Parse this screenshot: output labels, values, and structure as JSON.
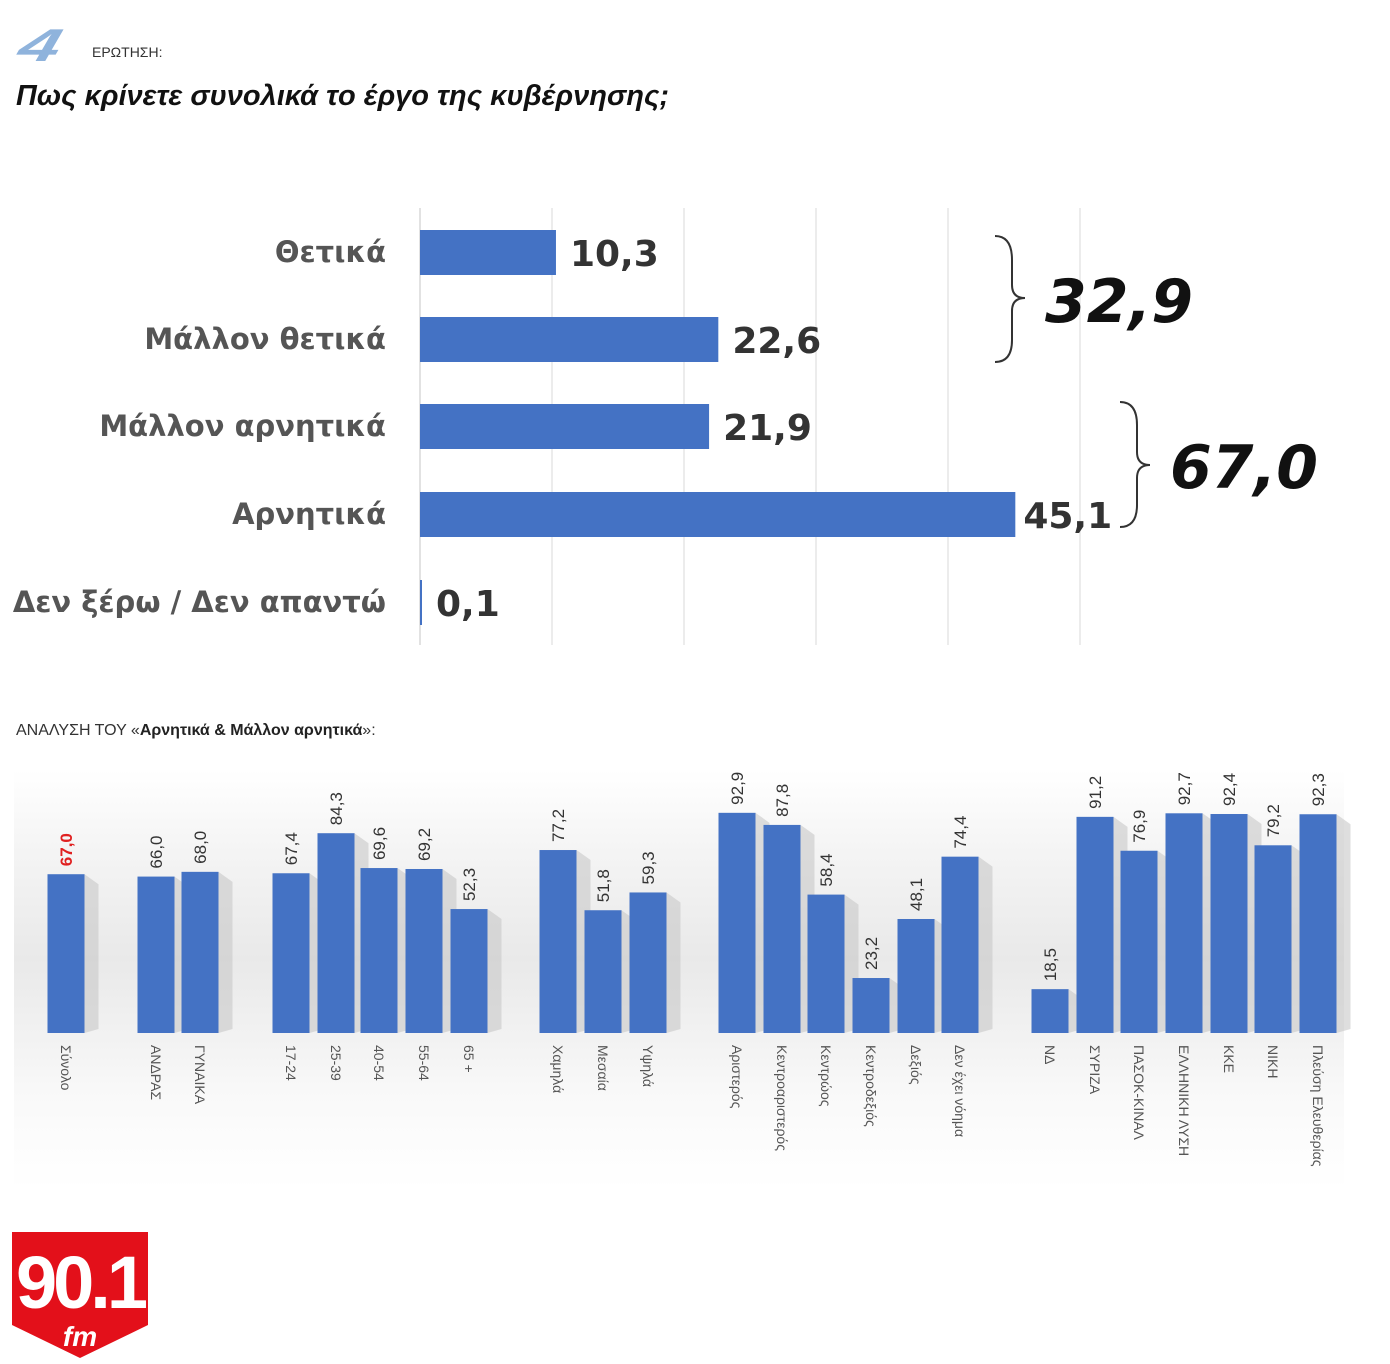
{
  "header": {
    "question_number": "4",
    "question_label": "ΕΡΩΤΗΣΗ:",
    "title": "Πως κρίνετε συνολικά το έργο της κυβέρνησης;"
  },
  "breakdown": {
    "prefix": "ΑΝΑΛΥΣΗ ΤΟΥ «",
    "bold": "Αρνητικά & Μάλλον αρνητικά",
    "suffix": "»:"
  },
  "logo": {
    "text": "90.1",
    "sub": "fm"
  },
  "colors": {
    "bar": "#4472c4",
    "highlight": "#e02020",
    "logo": "#e3101a"
  },
  "chart_data": [
    {
      "type": "bar",
      "orientation": "horizontal",
      "title": "Πως κρίνετε συνολικά το έργο της κυβέρνησης;",
      "categories": [
        "Θετικά",
        "Μάλλον θετικά",
        "Μάλλον αρνητικά",
        "Αρνητικά",
        "Δεν ξέρω / Δεν απαντώ"
      ],
      "values": [
        10.3,
        22.6,
        21.9,
        45.1,
        0.1
      ],
      "value_labels": [
        "10,3",
        "22,6",
        "21,9",
        "45,1",
        "0,1"
      ],
      "xlim": [
        0,
        50
      ],
      "grid": true,
      "annotations": [
        {
          "label": "32,9",
          "groups": [
            "Θετικά",
            "Μάλλον θετικά"
          ]
        },
        {
          "label": "67,0",
          "groups": [
            "Μάλλον αρνητικά",
            "Αρνητικά"
          ]
        }
      ]
    },
    {
      "type": "bar",
      "orientation": "vertical",
      "title": "ΑΝΑΛΥΣΗ ΤΟΥ «Αρνητικά & Μάλλον αρνητικά»",
      "ylim": [
        0,
        100
      ],
      "grid": false,
      "groups": [
        {
          "categories": [
            "Σύνολο"
          ],
          "values": [
            67.0
          ],
          "labels": [
            "67,0"
          ]
        },
        {
          "categories": [
            "ΑΝΔΡΑΣ",
            "ΓΥΝΑΙΚΑ"
          ],
          "values": [
            66.0,
            68.0
          ],
          "labels": [
            "66,0",
            "68,0"
          ]
        },
        {
          "categories": [
            "17-24",
            "25-39",
            "40-54",
            "55-64",
            "65 +"
          ],
          "values": [
            67.4,
            84.3,
            69.6,
            69.2,
            52.3
          ],
          "labels": [
            "67,4",
            "84,3",
            "69,6",
            "69,2",
            "52,3"
          ]
        },
        {
          "categories": [
            "Χαμηλά",
            "Μεσαία",
            "Υψηλά"
          ],
          "values": [
            77.2,
            51.8,
            59.3
          ],
          "labels": [
            "77,2",
            "51,8",
            "59,3"
          ]
        },
        {
          "categories": [
            "Αριστερός",
            "Κεντροαριστερός",
            "Κεντρώος",
            "Κεντροδεξιός",
            "Δεξιός",
            "Δεν έχει νόημα"
          ],
          "values": [
            92.9,
            87.8,
            58.4,
            23.2,
            48.1,
            74.4
          ],
          "labels": [
            "92,9",
            "87,8",
            "58,4",
            "23,2",
            "48,1",
            "74,4"
          ]
        },
        {
          "categories": [
            "ΝΔ",
            "ΣΥΡΙΖΑ",
            "ΠΑΣΟΚ-ΚΙΝΑΛ",
            "ΕΛΛΗΝΙΚΗ ΛΥΣΗ",
            "ΚΚΕ",
            "ΝΙΚΗ",
            "Πλεύση Ελευθερίας"
          ],
          "values": [
            18.5,
            91.2,
            76.9,
            92.7,
            92.4,
            79.2,
            92.3
          ],
          "labels": [
            "18,5",
            "91,2",
            "76,9",
            "92,7",
            "92,4",
            "79,2",
            "92,3"
          ]
        }
      ]
    }
  ]
}
